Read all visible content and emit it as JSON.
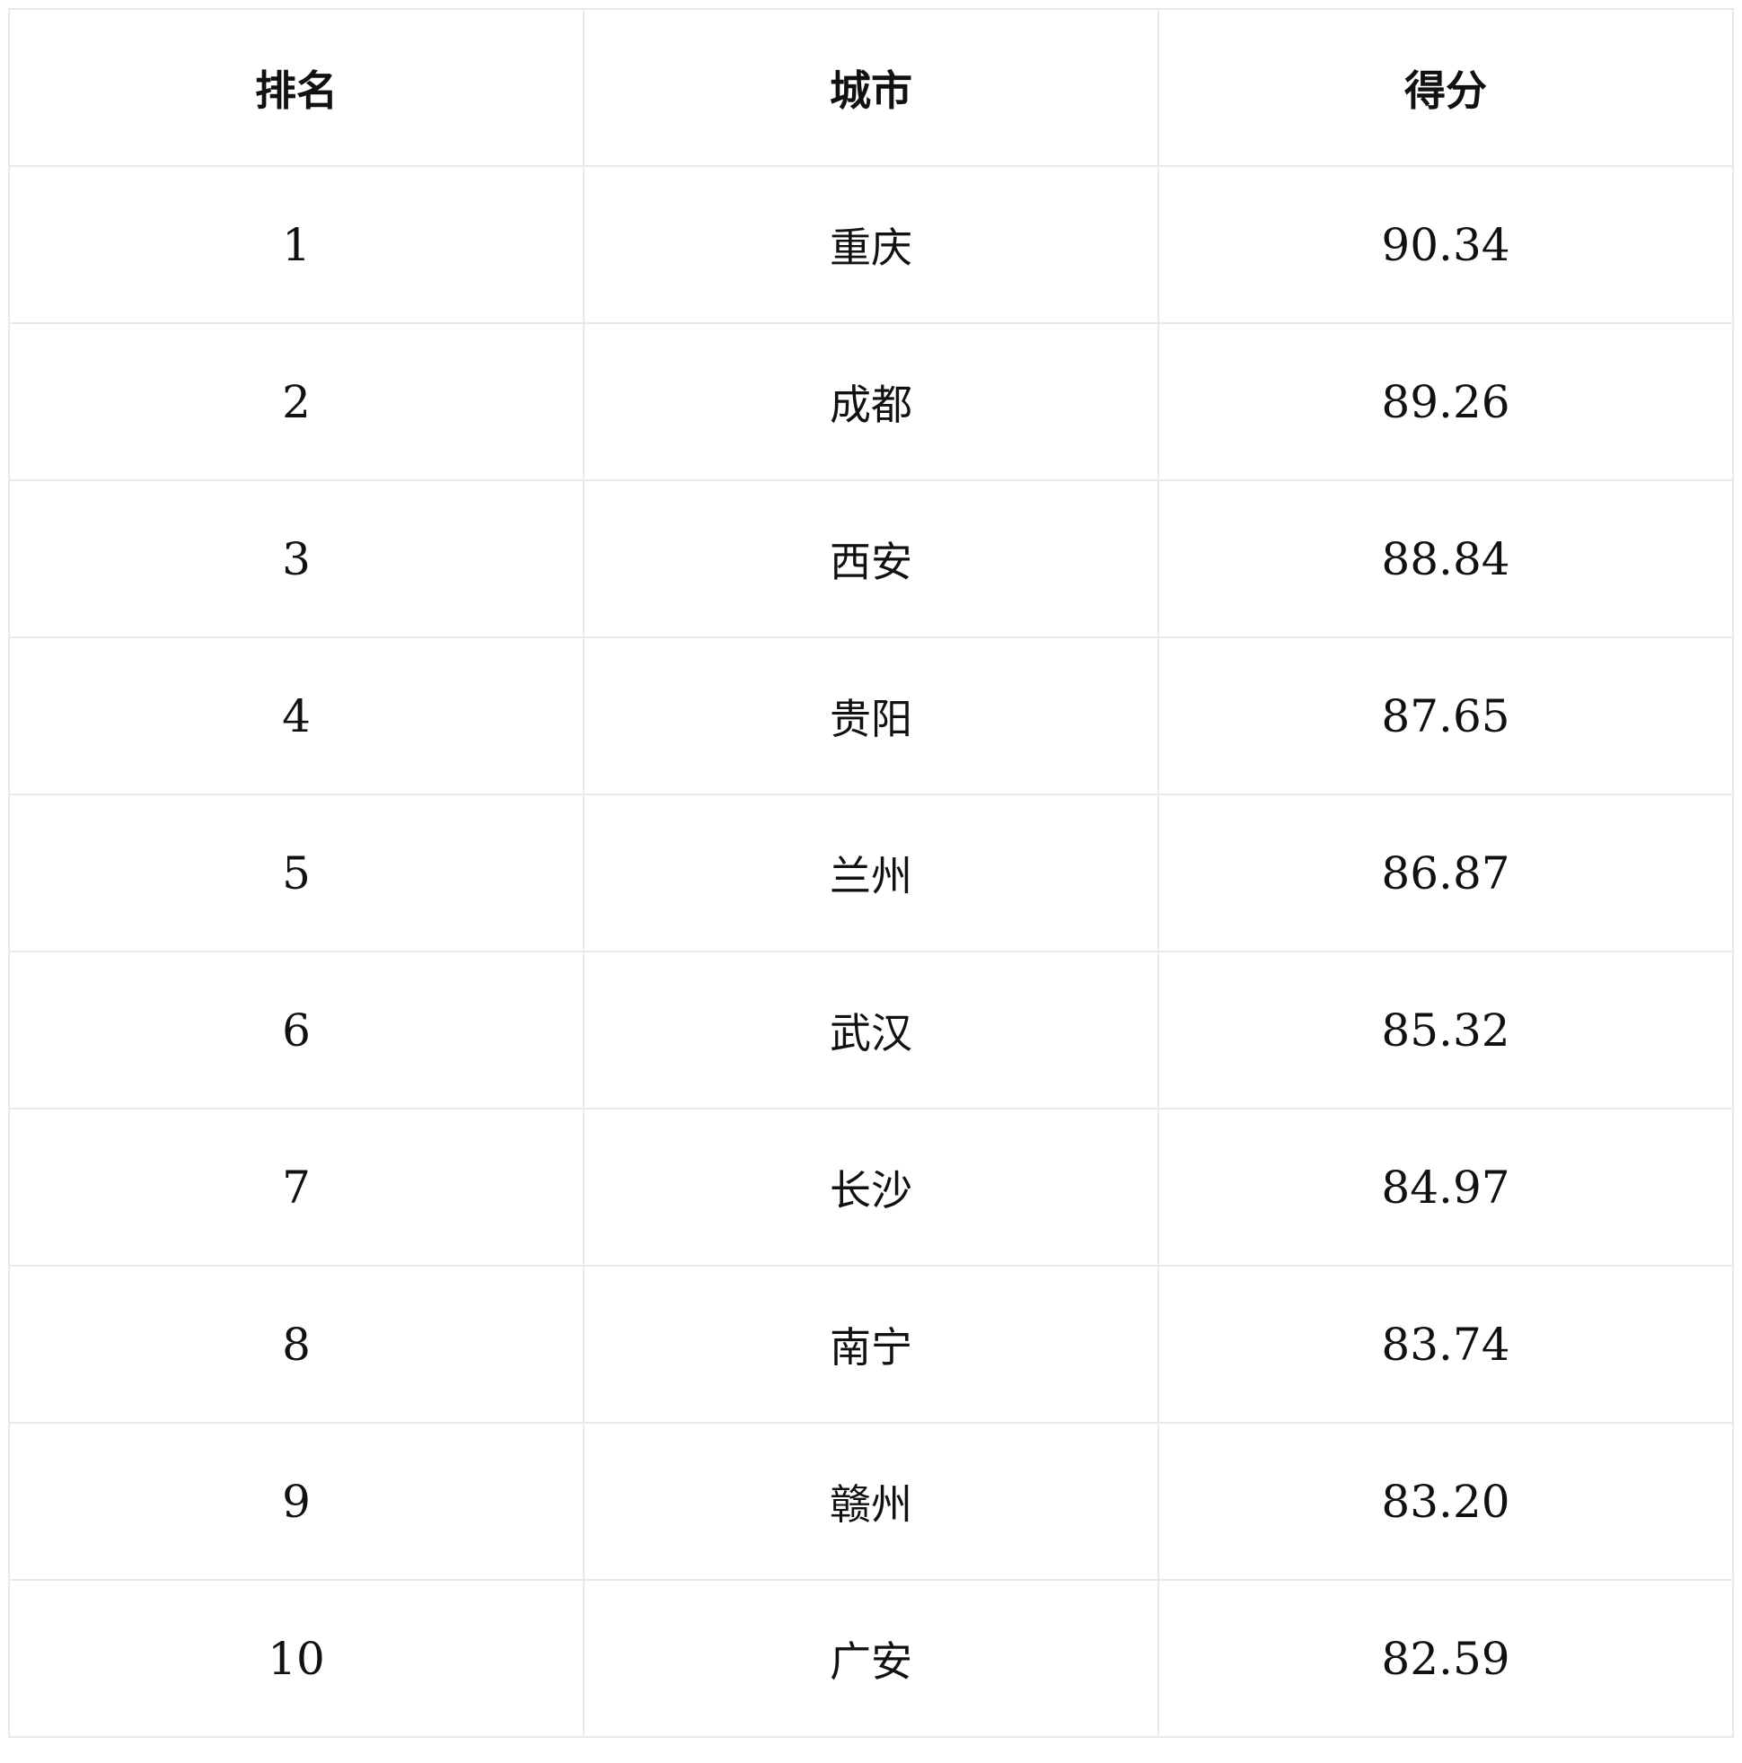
{
  "table": {
    "headers": [
      "排名",
      "城市",
      "得分"
    ],
    "rows": [
      [
        "1",
        "重庆",
        "90.34"
      ],
      [
        "2",
        "成都",
        "89.26"
      ],
      [
        "3",
        "西安",
        "88.84"
      ],
      [
        "4",
        "贵阳",
        "87.65"
      ],
      [
        "5",
        "兰州",
        "86.87"
      ],
      [
        "6",
        "武汉",
        "85.32"
      ],
      [
        "7",
        "长沙",
        "84.97"
      ],
      [
        "8",
        "南宁",
        "83.74"
      ],
      [
        "9",
        "赣州",
        "83.20"
      ],
      [
        "10",
        "广安",
        "82.59"
      ]
    ]
  }
}
